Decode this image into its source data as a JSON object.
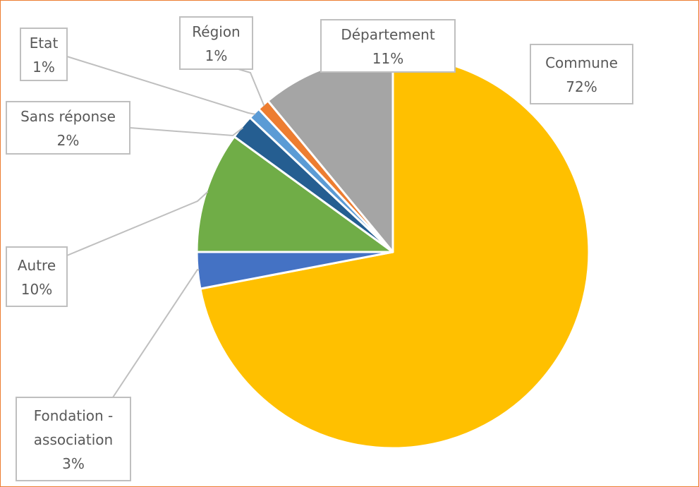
{
  "chart_data": {
    "type": "pie",
    "start_angle_deg": 0,
    "direction": "clockwise",
    "title": "",
    "slices": [
      {
        "label": "Commune",
        "value": 72,
        "label_text": "72%",
        "color": "#FFC000",
        "lines": [
          "Commune",
          "72%"
        ]
      },
      {
        "label": "Fondation - association",
        "value": 3,
        "label_text": "3%",
        "color": "#4472C4",
        "lines": [
          "Fondation -",
          "association",
          "3%"
        ]
      },
      {
        "label": "Autre",
        "value": 10,
        "label_text": "10%",
        "color": "#70AD47",
        "lines": [
          "Autre",
          "10%"
        ]
      },
      {
        "label": "Sans réponse",
        "value": 2,
        "label_text": "2%",
        "color": "#255E91",
        "lines": [
          "Sans réponse",
          "2%"
        ]
      },
      {
        "label": "Etat",
        "value": 1,
        "label_text": "1%",
        "color": "#5B9BD5",
        "lines": [
          "Etat",
          "1%"
        ]
      },
      {
        "label": "Région",
        "value": 1,
        "label_text": "1%",
        "color": "#ED7D31",
        "lines": [
          "Région",
          "1%"
        ]
      },
      {
        "label": "Département",
        "value": 11,
        "label_text": "11%",
        "color": "#A5A5A5",
        "lines": [
          "Département",
          "11%"
        ]
      }
    ]
  }
}
